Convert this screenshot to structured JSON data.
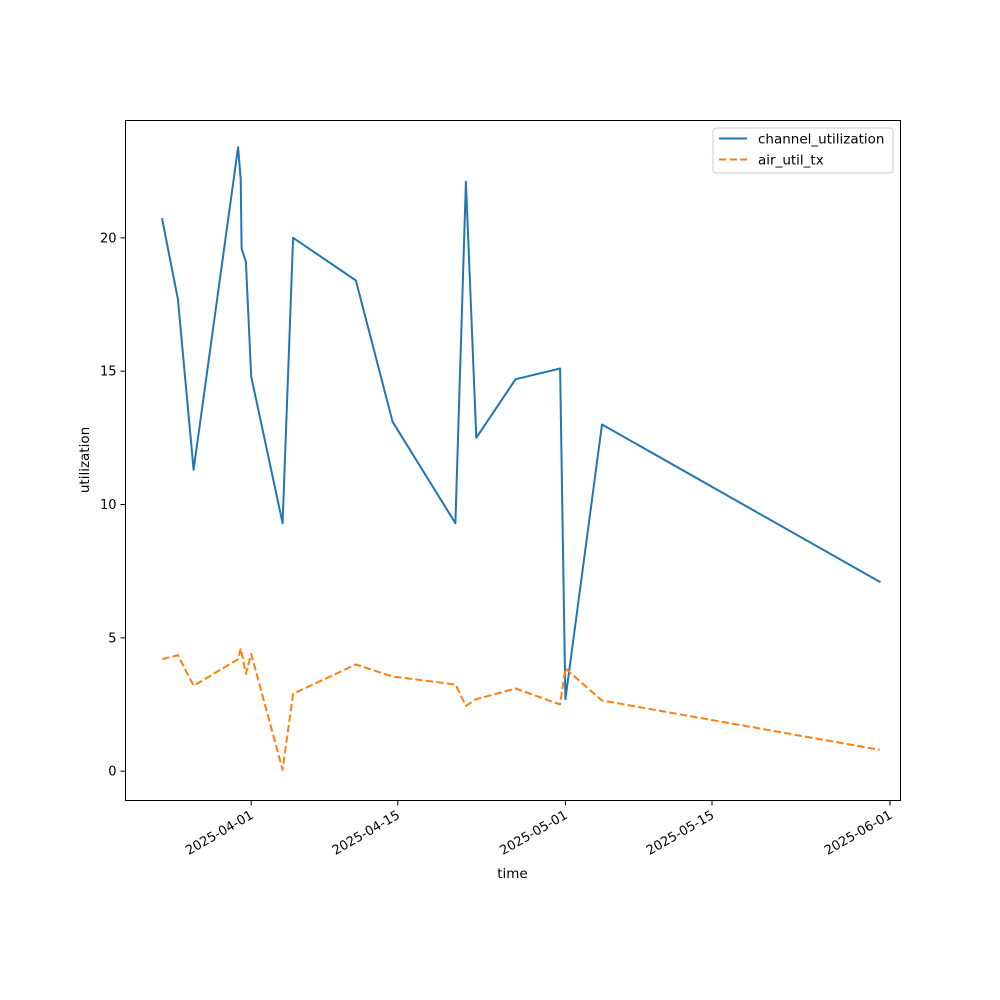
{
  "chart_data": {
    "type": "line",
    "xlabel": "time",
    "ylabel": "utilization",
    "ylim": [
      -1.1,
      24.4
    ],
    "xlim": [
      "2025-03-20",
      "2025-06-02"
    ],
    "x_ticks": [
      "2025-04-01",
      "2025-04-15",
      "2025-05-01",
      "2025-05-15",
      "2025-06-01"
    ],
    "y_ticks": [
      0,
      5,
      10,
      15,
      20
    ],
    "legend_position": "top-right",
    "grid": false,
    "series": [
      {
        "name": "channel_utilization",
        "color": "#1f77b4",
        "style": "solid",
        "points": [
          [
            "2025-03-23T12:00",
            20.7
          ],
          [
            "2025-03-25T00:00",
            17.7
          ],
          [
            "2025-03-26T12:00",
            11.3
          ],
          [
            "2025-03-30T18:00",
            23.4
          ],
          [
            "2025-03-31T00:00",
            22.2
          ],
          [
            "2025-03-31T02:00",
            19.6
          ],
          [
            "2025-03-31T12:00",
            19.1
          ],
          [
            "2025-04-01T00:00",
            14.8
          ],
          [
            "2025-04-04T00:00",
            9.3
          ],
          [
            "2025-04-05T00:00",
            20.0
          ],
          [
            "2025-04-11T00:00",
            18.4
          ],
          [
            "2025-04-14T12:00",
            13.1
          ],
          [
            "2025-04-20T12:00",
            9.3
          ],
          [
            "2025-04-21T12:00",
            22.1
          ],
          [
            "2025-04-22T12:00",
            12.5
          ],
          [
            "2025-04-26T06:00",
            14.7
          ],
          [
            "2025-04-30T12:00",
            15.1
          ],
          [
            "2025-05-01T00:00",
            2.7
          ],
          [
            "2025-05-04T12:00",
            13.0
          ],
          [
            "2025-05-31T00:00",
            7.1
          ]
        ]
      },
      {
        "name": "air_util_tx",
        "color": "#ff7f0e",
        "style": "dashed",
        "points": [
          [
            "2025-03-23T12:00",
            4.2
          ],
          [
            "2025-03-25T00:00",
            4.35
          ],
          [
            "2025-03-26T12:00",
            3.2
          ],
          [
            "2025-03-30T18:00",
            4.2
          ],
          [
            "2025-03-31T00:00",
            4.6
          ],
          [
            "2025-03-31T12:00",
            3.65
          ],
          [
            "2025-04-01T00:00",
            4.4
          ],
          [
            "2025-04-04T00:00",
            0.05
          ],
          [
            "2025-04-05T00:00",
            2.9
          ],
          [
            "2025-04-11T00:00",
            4.0
          ],
          [
            "2025-04-14T12:00",
            3.55
          ],
          [
            "2025-04-20T12:00",
            3.25
          ],
          [
            "2025-04-21T12:00",
            2.45
          ],
          [
            "2025-04-22T12:00",
            2.7
          ],
          [
            "2025-04-26T06:00",
            3.1
          ],
          [
            "2025-04-30T12:00",
            2.5
          ],
          [
            "2025-05-01T00:00",
            3.85
          ],
          [
            "2025-05-04T12:00",
            2.65
          ],
          [
            "2025-05-31T00:00",
            0.8
          ]
        ]
      }
    ]
  }
}
